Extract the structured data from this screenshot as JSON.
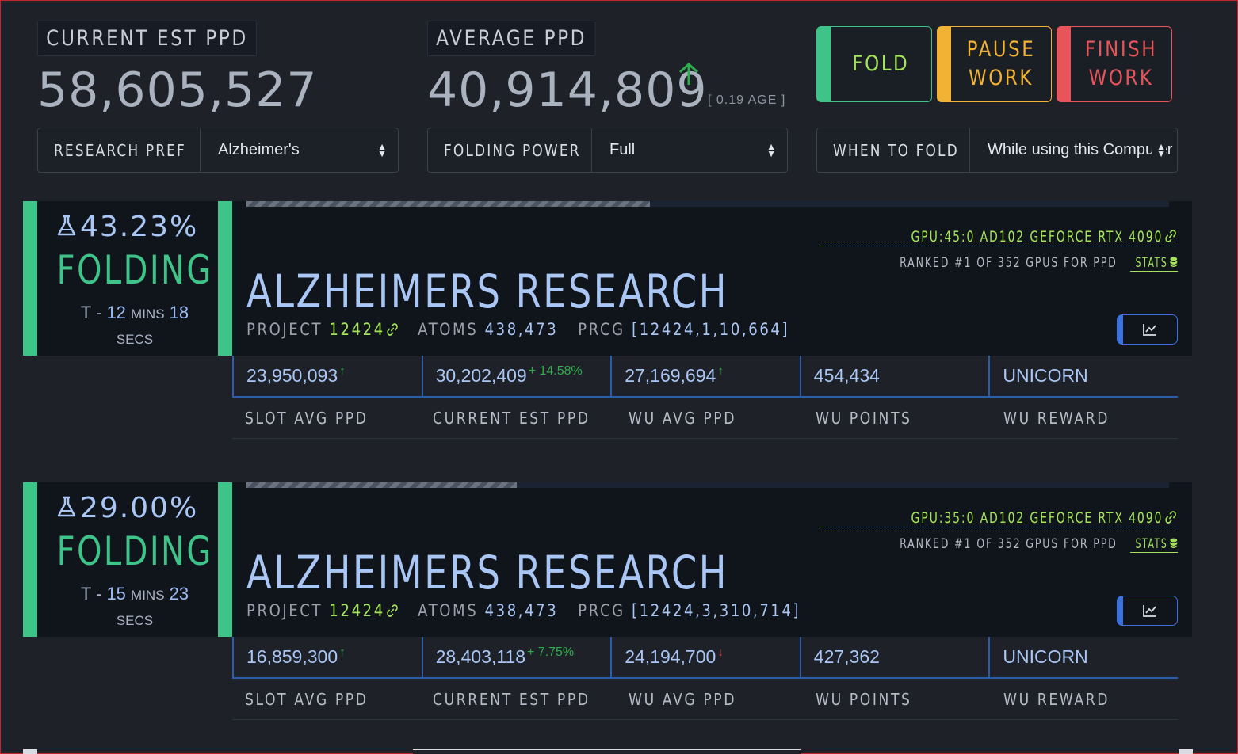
{
  "header": {
    "current_est_ppd_label": "CURRENT EST PPD",
    "current_est_ppd_value": "58,605,527",
    "average_ppd_label": "AVERAGE PPD",
    "average_ppd_value": "40,914,809",
    "average_trend_icon": "arrow-up-icon",
    "age_text": "[ 0.19 AGE ]"
  },
  "controls": {
    "fold_label": "FOLD",
    "pause_label_1": "PAUSE",
    "pause_label_2": "WORK",
    "finish_label_1": "FINISH",
    "finish_label_2": "WORK",
    "fold_color": "#3ec489",
    "pause_color": "#f2b233",
    "finish_color": "#e8545a"
  },
  "selects": {
    "research_pref_label": "RESEARCH PREF",
    "research_pref_value": "Alzheimer's",
    "folding_power_label": "FOLDING POWER",
    "folding_power_value": "Full",
    "when_to_fold_label": "WHEN TO FOLD",
    "when_to_fold_value": "While using this Computer"
  },
  "slots": [
    {
      "percent": "43.23%",
      "progress": 0.4323,
      "state": "FOLDING",
      "eta_prefix": "T -",
      "eta_mins": "12",
      "eta_mins_unit": "MINS",
      "eta_secs": "18",
      "eta_secs_unit": "SECS",
      "gpu": "GPU:45:0 AD102 GEFORCE RTX 4090",
      "rank_text": "RANKED #1 OF 352 GPUS FOR PPD",
      "stats_link": "STATS",
      "title": "ALZHEIMERS RESEARCH",
      "project_label": "PROJECT",
      "project_value": "12424",
      "atoms_label": "ATOMS",
      "atoms_value": "438,473",
      "prcg_label": "PRCG",
      "prcg_value": "[12424,1,10,664]",
      "slot_avg_ppd": "23,950,093",
      "current_est_ppd": "30,202,409",
      "current_est_delta": "+ 14.58%",
      "wu_avg_ppd": "27,169,694",
      "wu_avg_trend": "up",
      "wu_points": "454,434",
      "wu_reward": "UNICORN"
    },
    {
      "percent": "29.00%",
      "progress": 0.29,
      "state": "FOLDING",
      "eta_prefix": "T -",
      "eta_mins": "15",
      "eta_mins_unit": "MINS",
      "eta_secs": "23",
      "eta_secs_unit": "SECS",
      "gpu": "GPU:35:0 AD102 GEFORCE RTX 4090",
      "rank_text": "RANKED #1 OF 352 GPUS FOR PPD",
      "stats_link": "STATS",
      "title": "ALZHEIMERS RESEARCH",
      "project_label": "PROJECT",
      "project_value": "12424",
      "atoms_label": "ATOMS",
      "atoms_value": "438,473",
      "prcg_label": "PRCG",
      "prcg_value": "[12424,3,310,714]",
      "slot_avg_ppd": "16,859,300",
      "current_est_ppd": "28,403,118",
      "current_est_delta": "+ 7.75%",
      "wu_avg_ppd": "24,194,700",
      "wu_avg_trend": "down",
      "wu_points": "427,362",
      "wu_reward": "UNICORN"
    }
  ],
  "stat_labels": {
    "slot_avg_ppd": "SLOT AVG PPD",
    "current_est_ppd": "CURRENT EST PPD",
    "wu_avg_ppd": "WU AVG PPD",
    "wu_points": "WU POINTS",
    "wu_reward": "WU REWARD"
  }
}
